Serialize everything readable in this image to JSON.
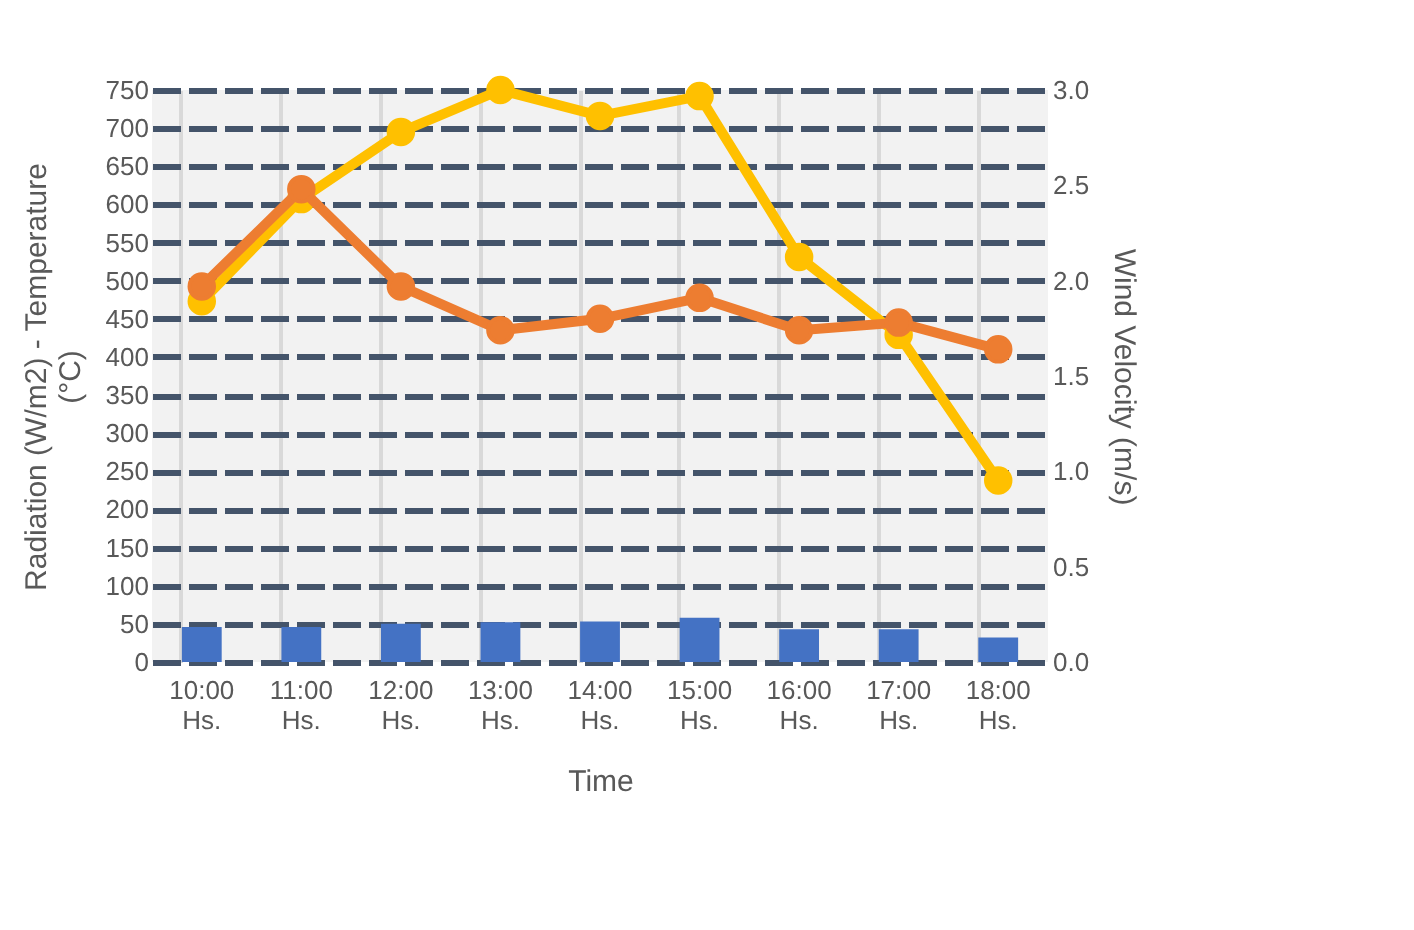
{
  "chart_data": {
    "type": "bar",
    "xlabel": "Time",
    "ylabel": "Radiation (W/m2) - Temperature (°C)",
    "y2label": "Wind Velocity (m/s)",
    "categories": [
      "10:00 Hs.",
      "11:00 Hs.",
      "12:00 Hs.",
      "13:00 Hs.",
      "14:00 Hs.",
      "15:00 Hs.",
      "16:00 Hs.",
      "17:00 Hs.",
      "18:00 Hs."
    ],
    "series": [
      {
        "color": "#4472c4",
        "values": [
          46,
          46,
          50,
          52,
          53,
          58,
          43,
          43,
          32
        ]
      },
      {
        "type": "line",
        "color": "#ffc000",
        "values": [
          473,
          607,
          695,
          750,
          716,
          742,
          531,
          429,
          238
        ]
      },
      {
        "type": "line",
        "color": "#ed7d31",
        "axis": "y2",
        "values": [
          1.97,
          2.48,
          1.97,
          1.74,
          1.8,
          1.91,
          1.74,
          1.78,
          1.64
        ]
      }
    ],
    "ylim": [
      0,
      750
    ],
    "yticks": [
      0,
      50,
      100,
      150,
      200,
      250,
      300,
      350,
      400,
      450,
      500,
      550,
      600,
      650,
      700,
      750
    ],
    "y2lim": [
      0,
      3
    ],
    "y2ticks": [
      {
        "value": 0,
        "label": "0.0"
      },
      {
        "value": 0.5,
        "label": "0.5"
      },
      {
        "value": 1,
        "label": "1.0"
      },
      {
        "value": 1.5,
        "label": "1.5"
      },
      {
        "value": 2,
        "label": "2.0"
      },
      {
        "value": 2.5,
        "label": "2.5"
      },
      {
        "value": 3,
        "label": "3.0"
      }
    ],
    "grid": true,
    "marker": "circle"
  }
}
